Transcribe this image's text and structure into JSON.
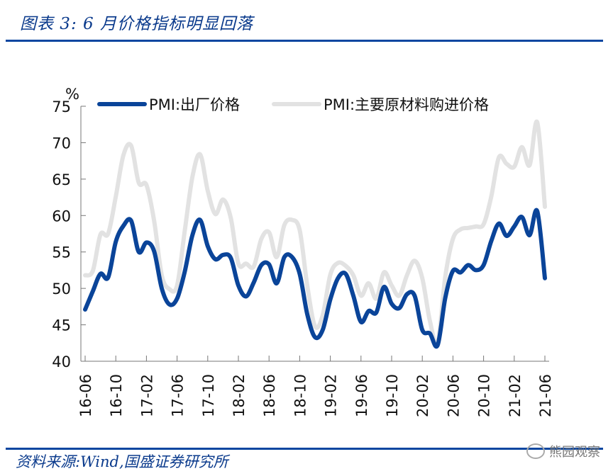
{
  "header": {
    "title": "图表 3:  6 月价格指标明显回落"
  },
  "footer": {
    "source": "资料来源:Wind,国盛证券研究所",
    "watermark": "熊园观察"
  },
  "colors": {
    "ex_factory": "#0a4499",
    "input": "#e2e2e2",
    "rule": "#0a46a0",
    "title": "#0a3a8c"
  },
  "chart_data": {
    "type": "line",
    "title": "6 月价格指标明显回落",
    "xlabel": "",
    "ylabel": "%",
    "ylim": [
      40,
      75
    ],
    "yticks": [
      40,
      45,
      50,
      55,
      60,
      65,
      70,
      75
    ],
    "xtick_labels": [
      "16-06",
      "16-10",
      "17-02",
      "17-06",
      "17-10",
      "18-02",
      "18-06",
      "18-10",
      "19-02",
      "19-06",
      "19-10",
      "20-02",
      "20-06",
      "20-10",
      "21-02",
      "21-06"
    ],
    "legend_position": "top",
    "grid": false,
    "x": [
      "16-06",
      "16-07",
      "16-08",
      "16-09",
      "16-10",
      "16-11",
      "16-12",
      "17-01",
      "17-02",
      "17-03",
      "17-04",
      "17-05",
      "17-06",
      "17-07",
      "17-08",
      "17-09",
      "17-10",
      "17-11",
      "17-12",
      "18-01",
      "18-02",
      "18-03",
      "18-04",
      "18-05",
      "18-06",
      "18-07",
      "18-08",
      "18-09",
      "18-10",
      "18-11",
      "18-12",
      "19-01",
      "19-02",
      "19-03",
      "19-04",
      "19-05",
      "19-06",
      "19-07",
      "19-08",
      "19-09",
      "19-10",
      "19-11",
      "19-12",
      "20-01",
      "20-02",
      "20-03",
      "20-04",
      "20-05",
      "20-06",
      "20-07",
      "20-08",
      "20-09",
      "20-10",
      "20-11",
      "20-12",
      "21-01",
      "21-02",
      "21-03",
      "21-04",
      "21-05",
      "21-06"
    ],
    "series": [
      {
        "name": "PMI:出厂价格",
        "values": [
          47.1,
          49.6,
          52.0,
          51.5,
          56.4,
          58.6,
          59.3,
          55.0,
          56.3,
          55.1,
          50.0,
          47.8,
          48.6,
          52.3,
          57.3,
          59.4,
          55.8,
          54.0,
          54.6,
          54.2,
          50.4,
          48.9,
          50.8,
          53.2,
          53.3,
          50.7,
          54.3,
          54.3,
          52.0,
          46.4,
          43.3,
          44.3,
          48.5,
          51.4,
          52.0,
          49.0,
          45.4,
          46.9,
          46.7,
          50.2,
          47.9,
          47.3,
          49.2,
          49.0,
          44.3,
          43.8,
          42.2,
          48.7,
          52.4,
          52.2,
          53.2,
          52.5,
          53.2,
          56.5,
          58.9,
          57.2,
          58.5,
          59.8,
          57.3,
          60.6,
          51.4
        ]
      },
      {
        "name": "PMI:主要原材料购进价格",
        "values": [
          51.8,
          52.4,
          57.4,
          57.5,
          62.6,
          68.3,
          69.6,
          64.5,
          64.2,
          59.3,
          51.8,
          49.9,
          50.4,
          57.9,
          65.3,
          68.4,
          63.4,
          60.2,
          62.2,
          59.7,
          53.4,
          53.4,
          53.0,
          56.8,
          57.7,
          54.3,
          58.7,
          59.4,
          58.0,
          50.3,
          44.8,
          46.3,
          51.9,
          53.5,
          53.1,
          51.8,
          49.0,
          50.7,
          48.6,
          52.2,
          50.4,
          49.0,
          51.8,
          53.8,
          51.4,
          45.5,
          42.5,
          51.6,
          56.8,
          58.1,
          58.3,
          58.5,
          58.8,
          62.6,
          68.0,
          67.1,
          66.7,
          69.4,
          66.9,
          72.8,
          61.2
        ]
      }
    ]
  }
}
